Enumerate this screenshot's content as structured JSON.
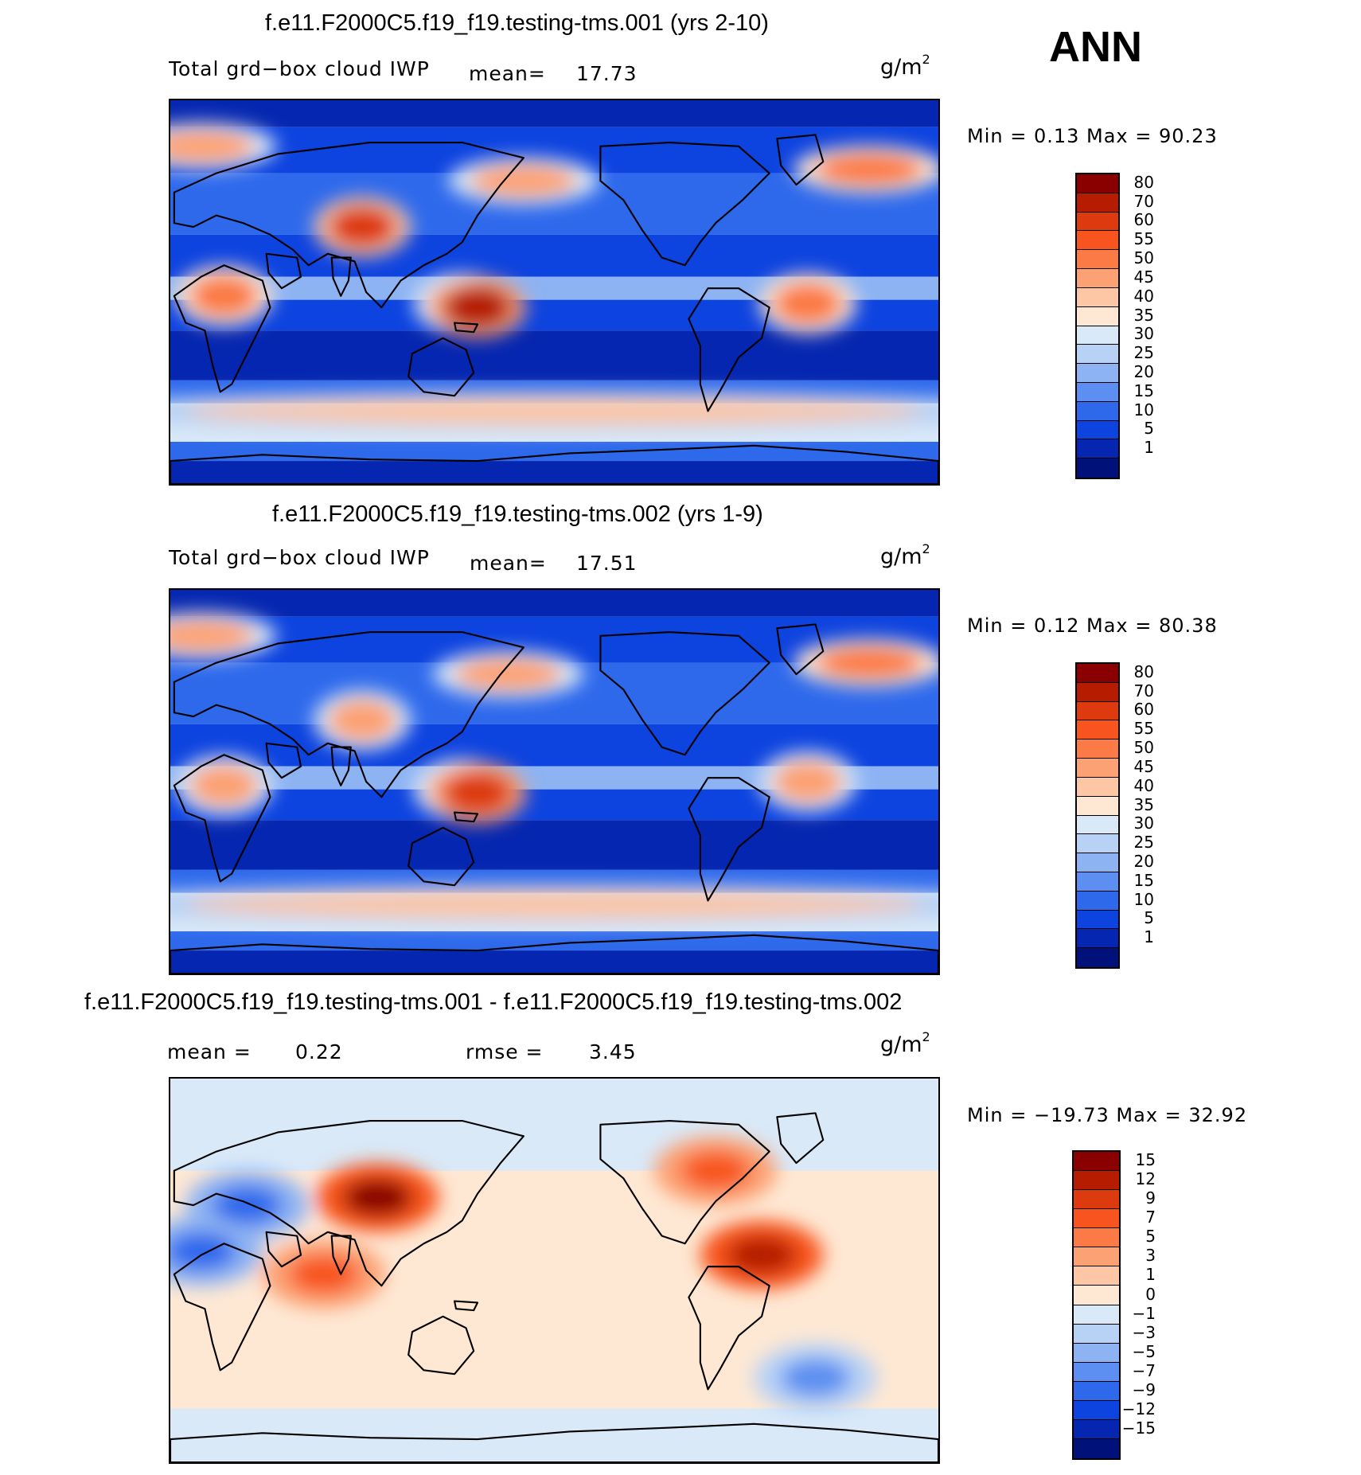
{
  "season": "ANN",
  "panels": [
    {
      "title": "f.e11.F2000C5.f19_f19.testing-tms.001 (yrs 2-10)",
      "variable": "Total grd−box cloud IWP",
      "mean_label": "mean=",
      "mean_value": "17.73",
      "units": "g/m",
      "units_exp": "2",
      "stats_text": "Min =    0.13 Max =   90.23",
      "colorbar": {
        "labels": [
          "80",
          "70",
          "60",
          "55",
          "50",
          "45",
          "40",
          "35",
          "30",
          "25",
          "20",
          "15",
          "10",
          "5",
          "1"
        ],
        "colors": [
          "#8a0000",
          "#b51c00",
          "#dd3a10",
          "#f8541f",
          "#fb7a45",
          "#fca173",
          "#fdc6a4",
          "#fee8d4",
          "#d9e9f8",
          "#b8d2f5",
          "#8db3f3",
          "#5c8ff1",
          "#2e69ec",
          "#0d43df",
          "#0526b0",
          "#00127a"
        ]
      },
      "map": {
        "mode": "iwp",
        "regions": [
          {
            "name": "north-atlantic-storm-track-west",
            "lon": 0.04,
            "lat": 0.12,
            "value": 45
          },
          {
            "name": "north-atlantic-storm-track-east",
            "lon": 0.91,
            "lat": 0.18,
            "value": 52
          },
          {
            "name": "north-pacific-storm-track",
            "lon": 0.46,
            "lat": 0.21,
            "value": 48
          },
          {
            "name": "tibetan-plateau",
            "lon": 0.25,
            "lat": 0.33,
            "value": 60
          },
          {
            "name": "central-africa",
            "lon": 0.07,
            "lat": 0.51,
            "value": 50
          },
          {
            "name": "maritime-continent",
            "lon": 0.38,
            "lat": 0.53,
            "value": 45
          },
          {
            "name": "new-guinea",
            "lon": 0.4,
            "lat": 0.54,
            "value": 70
          },
          {
            "name": "amazon",
            "lon": 0.83,
            "lat": 0.53,
            "value": 50
          },
          {
            "name": "southern-ocean-belt",
            "lon": 0.5,
            "lat": 0.81,
            "value": 40
          }
        ]
      }
    },
    {
      "title": "f.e11.F2000C5.f19_f19.testing-tms.002 (yrs 1-9)",
      "variable": "Total grd−box cloud IWP",
      "mean_label": "mean=",
      "mean_value": "17.51",
      "units": "g/m",
      "units_exp": "2",
      "stats_text": "Min =    0.12 Max =   80.38",
      "colorbar": {
        "labels": [
          "80",
          "70",
          "60",
          "55",
          "50",
          "45",
          "40",
          "35",
          "30",
          "25",
          "20",
          "15",
          "10",
          "5",
          "1"
        ],
        "colors": [
          "#8a0000",
          "#b51c00",
          "#dd3a10",
          "#f8541f",
          "#fb7a45",
          "#fca173",
          "#fdc6a4",
          "#fee8d4",
          "#d9e9f8",
          "#b8d2f5",
          "#8db3f3",
          "#5c8ff1",
          "#2e69ec",
          "#0d43df",
          "#0526b0",
          "#00127a"
        ]
      },
      "map": {
        "mode": "iwp",
        "regions": [
          {
            "name": "north-atlantic-storm-track-west",
            "lon": 0.04,
            "lat": 0.12,
            "value": 45
          },
          {
            "name": "north-atlantic-storm-track-east",
            "lon": 0.91,
            "lat": 0.19,
            "value": 52
          },
          {
            "name": "north-pacific-storm-track",
            "lon": 0.44,
            "lat": 0.22,
            "value": 45
          },
          {
            "name": "tibetan-plateau",
            "lon": 0.25,
            "lat": 0.34,
            "value": 45
          },
          {
            "name": "central-africa",
            "lon": 0.07,
            "lat": 0.51,
            "value": 48
          },
          {
            "name": "maritime-continent",
            "lon": 0.38,
            "lat": 0.52,
            "value": 45
          },
          {
            "name": "new-guinea",
            "lon": 0.4,
            "lat": 0.53,
            "value": 65
          },
          {
            "name": "amazon",
            "lon": 0.83,
            "lat": 0.5,
            "value": 45
          },
          {
            "name": "southern-ocean-belt",
            "lon": 0.5,
            "lat": 0.82,
            "value": 40
          }
        ]
      }
    },
    {
      "title": "f.e11.F2000C5.f19_f19.testing-tms.001 - f.e11.F2000C5.f19_f19.testing-tms.002",
      "variable": "",
      "mean_label": "mean =",
      "mean_value": "0.22",
      "rmse_label": "rmse =",
      "rmse_value": "3.45",
      "units": "g/m",
      "units_exp": "2",
      "stats_text": "Min = −19.73 Max =   32.92",
      "colorbar": {
        "labels": [
          "15",
          "12",
          "9",
          "7",
          "5",
          "3",
          "1",
          "0",
          "−1",
          "−3",
          "−5",
          "−7",
          "−9",
          "−12",
          "−15"
        ],
        "colors": [
          "#8a0000",
          "#b51c00",
          "#dd3a10",
          "#f8541f",
          "#fb7a45",
          "#fca173",
          "#fdc6a4",
          "#fee8d4",
          "#d9e9f8",
          "#b8d2f5",
          "#8db3f3",
          "#5c8ff1",
          "#2e69ec",
          "#0d43df",
          "#0526b0",
          "#00127a"
        ]
      },
      "map": {
        "mode": "diff",
        "regions": [
          {
            "name": "east-asia",
            "lon": 0.27,
            "lat": 0.31,
            "value": 16
          },
          {
            "name": "central-america",
            "lon": 0.77,
            "lat": 0.46,
            "value": 14
          },
          {
            "name": "indian-ocean",
            "lon": 0.2,
            "lat": 0.51,
            "value": 8
          },
          {
            "name": "north-america",
            "lon": 0.71,
            "lat": 0.24,
            "value": 7
          },
          {
            "name": "middle-east",
            "lon": 0.1,
            "lat": 0.33,
            "value": -9
          },
          {
            "name": "west-africa-arabia",
            "lon": 0.04,
            "lat": 0.45,
            "value": -8
          },
          {
            "name": "south-atlantic",
            "lon": 0.84,
            "lat": 0.78,
            "value": -6
          }
        ]
      }
    }
  ]
}
